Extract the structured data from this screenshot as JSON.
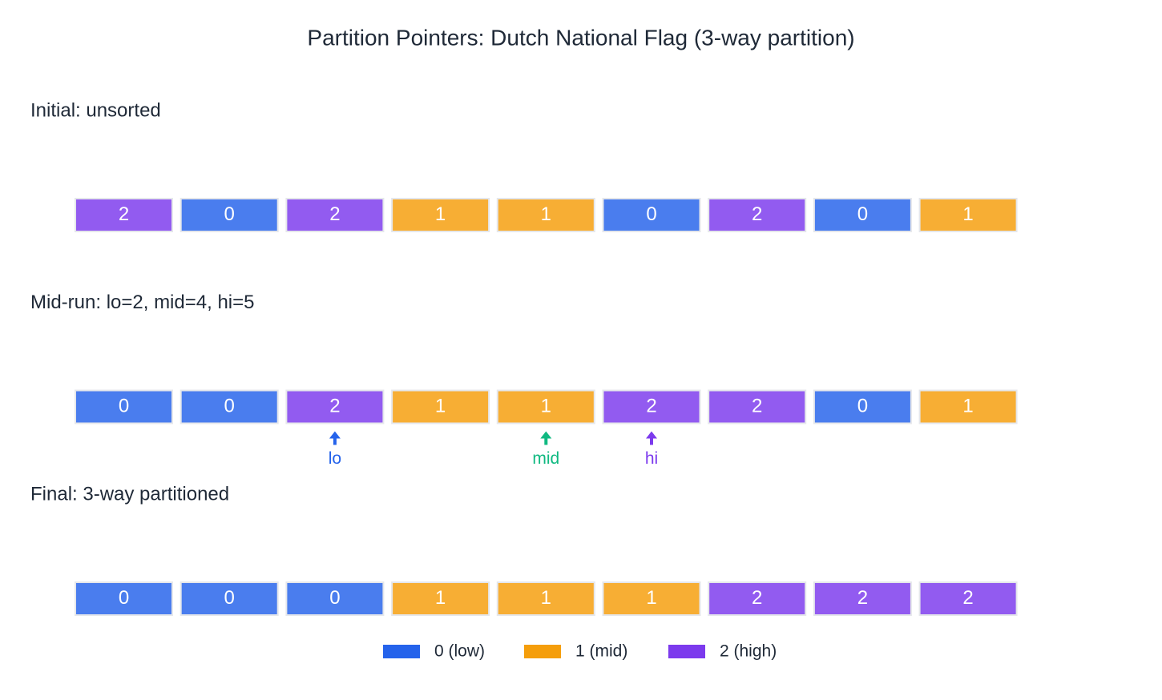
{
  "title": "Partition Pointers: Dutch National Flag (3-way partition)",
  "rows": [
    {
      "label": "Initial: unsorted",
      "cells": [
        "2",
        "0",
        "2",
        "1",
        "1",
        "0",
        "2",
        "0",
        "1"
      ],
      "pointers": []
    },
    {
      "label": "Mid-run: lo=2, mid=4, hi=5",
      "cells": [
        "0",
        "0",
        "2",
        "1",
        "1",
        "2",
        "2",
        "0",
        "1"
      ],
      "pointers": [
        {
          "label": "lo",
          "index": 2,
          "color": "#2563eb"
        },
        {
          "label": "mid",
          "index": 4,
          "color": "#10b981"
        },
        {
          "label": "hi",
          "index": 5,
          "color": "#7c3aed"
        }
      ]
    },
    {
      "label": "Final: 3-way partitioned",
      "cells": [
        "0",
        "0",
        "0",
        "1",
        "1",
        "1",
        "2",
        "2",
        "2"
      ],
      "pointers": []
    }
  ],
  "legend": [
    {
      "label": "0 (low)",
      "color": "#2563eb"
    },
    {
      "label": "1 (mid)",
      "color": "#f59e0b"
    },
    {
      "label": "2 (high)",
      "color": "#7c3aed"
    }
  ]
}
